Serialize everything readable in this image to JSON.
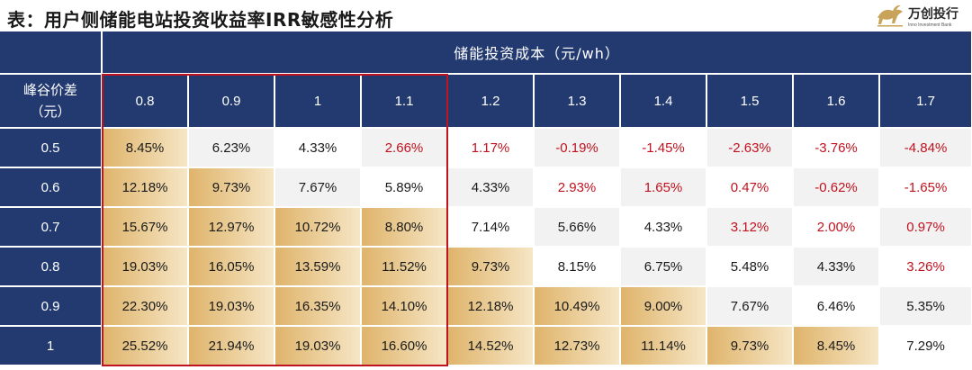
{
  "title": "表：用户侧储能电站投资收益率IRR敏感性分析",
  "logo": {
    "name": "万创投行",
    "tagline": "Inno Investment Bank"
  },
  "table": {
    "column_group_title": "储能投资成本（元/wh）",
    "row_header_line1": "峰谷价差",
    "row_header_line2": "（元）",
    "columns": [
      "0.8",
      "0.9",
      "1",
      "1.1",
      "1.2",
      "1.3",
      "1.4",
      "1.5",
      "1.6",
      "1.7"
    ],
    "rows": [
      {
        "label": "0.5",
        "values": [
          "8.45%",
          "6.23%",
          "4.33%",
          "2.66%",
          "1.17%",
          "-0.19%",
          "-1.45%",
          "-2.63%",
          "-3.76%",
          "-4.84%"
        ]
      },
      {
        "label": "0.6",
        "values": [
          "12.18%",
          "9.73%",
          "7.67%",
          "5.89%",
          "4.33%",
          "2.93%",
          "1.65%",
          "0.47%",
          "-0.62%",
          "-1.65%"
        ]
      },
      {
        "label": "0.7",
        "values": [
          "15.67%",
          "12.97%",
          "10.72%",
          "8.80%",
          "7.14%",
          "5.66%",
          "4.33%",
          "3.12%",
          "2.00%",
          "0.97%"
        ]
      },
      {
        "label": "0.8",
        "values": [
          "19.03%",
          "16.05%",
          "13.59%",
          "11.52%",
          "9.73%",
          "8.15%",
          "6.75%",
          "5.48%",
          "4.33%",
          "3.26%"
        ]
      },
      {
        "label": "0.9",
        "values": [
          "22.30%",
          "19.03%",
          "16.35%",
          "14.10%",
          "12.18%",
          "10.49%",
          "9.00%",
          "7.67%",
          "6.46%",
          "5.35%"
        ]
      },
      {
        "label": "1",
        "values": [
          "25.52%",
          "21.94%",
          "19.03%",
          "16.60%",
          "14.52%",
          "12.73%",
          "11.14%",
          "9.73%",
          "8.45%",
          "7.29%"
        ]
      }
    ]
  },
  "colors": {
    "header_navy": "#223a70",
    "highlight_gold": "#dfb46b",
    "neutral_grey": "#f2f2f2",
    "negative_red": "#c1121f",
    "box_outline_red": "#c1121f"
  }
}
